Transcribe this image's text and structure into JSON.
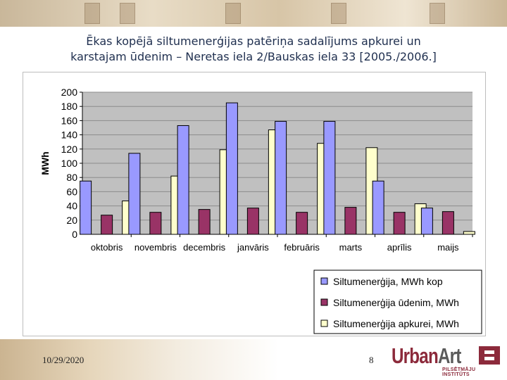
{
  "slide": {
    "title_line1": "Ēkas kopējā siltumenerģijas patēriņa sadalījums apkurei un",
    "title_line2": "karstajam ūdenim – Neretas iela 2/Bauskas iela 33 [2005./2006.]"
  },
  "footer": {
    "date": "10/29/2020",
    "page_number": "8",
    "logo_word1": "Urban",
    "logo_word2": "Art",
    "logo_tagline": "PILSĒTMĀJU INSTITŪTS"
  },
  "chart_data": {
    "type": "bar",
    "title": "",
    "xlabel": "",
    "ylabel": "MWh",
    "ylim": [
      0,
      200
    ],
    "yticks": [
      0,
      20,
      40,
      60,
      80,
      100,
      120,
      140,
      160,
      180,
      200
    ],
    "grid": true,
    "legend_position": "bottom-right",
    "categories": [
      "oktobris",
      "novembris",
      "decembris",
      "janvāris",
      "februāris",
      "marts",
      "aprīlis",
      "maijs"
    ],
    "series": [
      {
        "name": "Siltumenerģija, MWh kop",
        "color": "#9999ff",
        "values": [
          75,
          114,
          153,
          185,
          159,
          159,
          75,
          37
        ]
      },
      {
        "name": "Siltumenerģija ūdenim, MWh",
        "color": "#993366",
        "values": [
          27,
          31,
          35,
          37,
          31,
          38,
          31,
          32
        ]
      },
      {
        "name": "Siltumenerģija apkurei, MWh",
        "color": "#ffffcc",
        "values": [
          47,
          82,
          119,
          147,
          128,
          122,
          43,
          4
        ]
      }
    ]
  }
}
